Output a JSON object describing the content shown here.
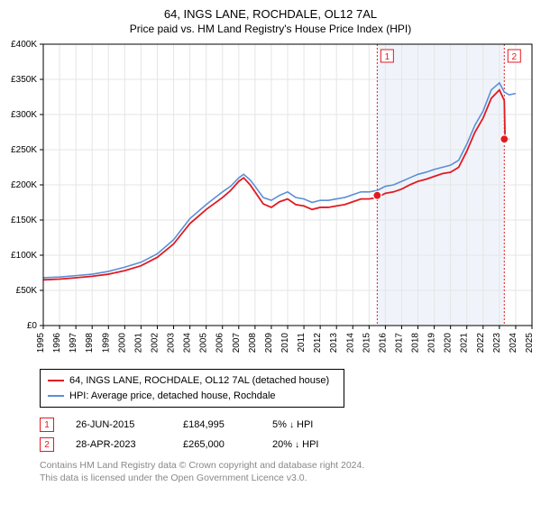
{
  "title": "64, INGS LANE, ROCHDALE, OL12 7AL",
  "subtitle": "Price paid vs. HM Land Registry's House Price Index (HPI)",
  "chart": {
    "type": "line",
    "background_color": "#ffffff",
    "grid_color": "#e5e5e5",
    "axis_color": "#000000",
    "shade_color": "#f0f4fa",
    "title_fontsize": 13,
    "label_fontsize": 10,
    "ylabel_prefix": "£",
    "xlim": [
      1995,
      2025
    ],
    "ylim": [
      0,
      400000
    ],
    "ytick_step": 50000,
    "yticks": [
      "£0",
      "£50K",
      "£100K",
      "£150K",
      "£200K",
      "£250K",
      "£300K",
      "£350K",
      "£400K"
    ],
    "xticks": [
      1995,
      1996,
      1997,
      1998,
      1999,
      2000,
      2001,
      2002,
      2003,
      2004,
      2005,
      2006,
      2007,
      2008,
      2009,
      2010,
      2011,
      2012,
      2013,
      2014,
      2015,
      2016,
      2017,
      2018,
      2019,
      2020,
      2021,
      2022,
      2023,
      2024,
      2025
    ],
    "shade_start": 2015.5,
    "shade_end": 2023.3,
    "series": [
      {
        "name": "hpi",
        "label": "HPI: Average price, detached house, Rochdale",
        "color": "#5a8fd6",
        "width": 1.6,
        "data": [
          [
            1995,
            68
          ],
          [
            1996,
            69
          ],
          [
            1997,
            71
          ],
          [
            1998,
            73
          ],
          [
            1999,
            77
          ],
          [
            2000,
            83
          ],
          [
            2001,
            90
          ],
          [
            2002,
            102
          ],
          [
            2003,
            122
          ],
          [
            2004,
            152
          ],
          [
            2005,
            172
          ],
          [
            2006,
            190
          ],
          [
            2006.5,
            198
          ],
          [
            2007,
            210
          ],
          [
            2007.3,
            215
          ],
          [
            2007.7,
            207
          ],
          [
            2008,
            198
          ],
          [
            2008.5,
            182
          ],
          [
            2009,
            178
          ],
          [
            2009.5,
            185
          ],
          [
            2010,
            190
          ],
          [
            2010.5,
            182
          ],
          [
            2011,
            180
          ],
          [
            2011.5,
            175
          ],
          [
            2012,
            178
          ],
          [
            2012.5,
            178
          ],
          [
            2013,
            180
          ],
          [
            2013.5,
            182
          ],
          [
            2014,
            186
          ],
          [
            2014.5,
            190
          ],
          [
            2015,
            190
          ],
          [
            2015.5,
            192
          ],
          [
            2016,
            198
          ],
          [
            2016.5,
            200
          ],
          [
            2017,
            205
          ],
          [
            2017.5,
            210
          ],
          [
            2018,
            215
          ],
          [
            2018.5,
            218
          ],
          [
            2019,
            222
          ],
          [
            2019.5,
            225
          ],
          [
            2020,
            228
          ],
          [
            2020.5,
            235
          ],
          [
            2021,
            258
          ],
          [
            2021.5,
            285
          ],
          [
            2022,
            305
          ],
          [
            2022.5,
            335
          ],
          [
            2023,
            345
          ],
          [
            2023.3,
            332
          ],
          [
            2023.6,
            328
          ],
          [
            2024,
            330
          ]
        ]
      },
      {
        "name": "property",
        "label": "64, INGS LANE, ROCHDALE, OL12 7AL (detached house)",
        "color": "#e11b22",
        "width": 1.8,
        "data": [
          [
            1995,
            65
          ],
          [
            1996,
            66
          ],
          [
            1997,
            68
          ],
          [
            1998,
            70
          ],
          [
            1999,
            73
          ],
          [
            2000,
            78
          ],
          [
            2001,
            85
          ],
          [
            2002,
            97
          ],
          [
            2003,
            116
          ],
          [
            2004,
            145
          ],
          [
            2005,
            165
          ],
          [
            2006,
            182
          ],
          [
            2006.5,
            192
          ],
          [
            2007,
            205
          ],
          [
            2007.3,
            210
          ],
          [
            2007.7,
            200
          ],
          [
            2008,
            190
          ],
          [
            2008.5,
            173
          ],
          [
            2009,
            168
          ],
          [
            2009.5,
            176
          ],
          [
            2010,
            180
          ],
          [
            2010.5,
            172
          ],
          [
            2011,
            170
          ],
          [
            2011.5,
            165
          ],
          [
            2012,
            168
          ],
          [
            2012.5,
            168
          ],
          [
            2013,
            170
          ],
          [
            2013.5,
            172
          ],
          [
            2014,
            176
          ],
          [
            2014.5,
            180
          ],
          [
            2015,
            180
          ],
          [
            2015.5,
            182
          ],
          [
            2016,
            188
          ],
          [
            2016.5,
            190
          ],
          [
            2017,
            194
          ],
          [
            2017.5,
            200
          ],
          [
            2018,
            205
          ],
          [
            2018.5,
            208
          ],
          [
            2019,
            212
          ],
          [
            2019.5,
            216
          ],
          [
            2020,
            218
          ],
          [
            2020.5,
            225
          ],
          [
            2021,
            248
          ],
          [
            2021.5,
            275
          ],
          [
            2022,
            295
          ],
          [
            2022.5,
            323
          ],
          [
            2023,
            335
          ],
          [
            2023.3,
            320
          ],
          [
            2023.35,
            265
          ],
          [
            2023.6,
            265
          ]
        ]
      }
    ],
    "sale_points": [
      {
        "x": 2015.5,
        "y": 184.995,
        "color": "#e11b22"
      },
      {
        "x": 2023.3,
        "y": 265,
        "color": "#e11b22"
      }
    ],
    "markers": [
      {
        "label": "1",
        "x": 2015.5,
        "color": "#e11b22"
      },
      {
        "label": "2",
        "x": 2023.3,
        "color": "#e11b22"
      }
    ]
  },
  "legend": {
    "items": [
      {
        "color": "#e11b22",
        "label": "64, INGS LANE, ROCHDALE, OL12 7AL (detached house)"
      },
      {
        "color": "#5a8fd6",
        "label": "HPI: Average price, detached house, Rochdale"
      }
    ]
  },
  "records": [
    {
      "num": "1",
      "color": "#e11b22",
      "date": "26-JUN-2015",
      "price": "£184,995",
      "pct": "5%",
      "arrow": "↓",
      "suffix": "HPI"
    },
    {
      "num": "2",
      "color": "#e11b22",
      "date": "28-APR-2023",
      "price": "£265,000",
      "pct": "20%",
      "arrow": "↓",
      "suffix": "HPI"
    }
  ],
  "footnote": {
    "line1": "Contains HM Land Registry data © Crown copyright and database right 2024.",
    "line2": "This data is licensed under the Open Government Licence v3.0."
  }
}
